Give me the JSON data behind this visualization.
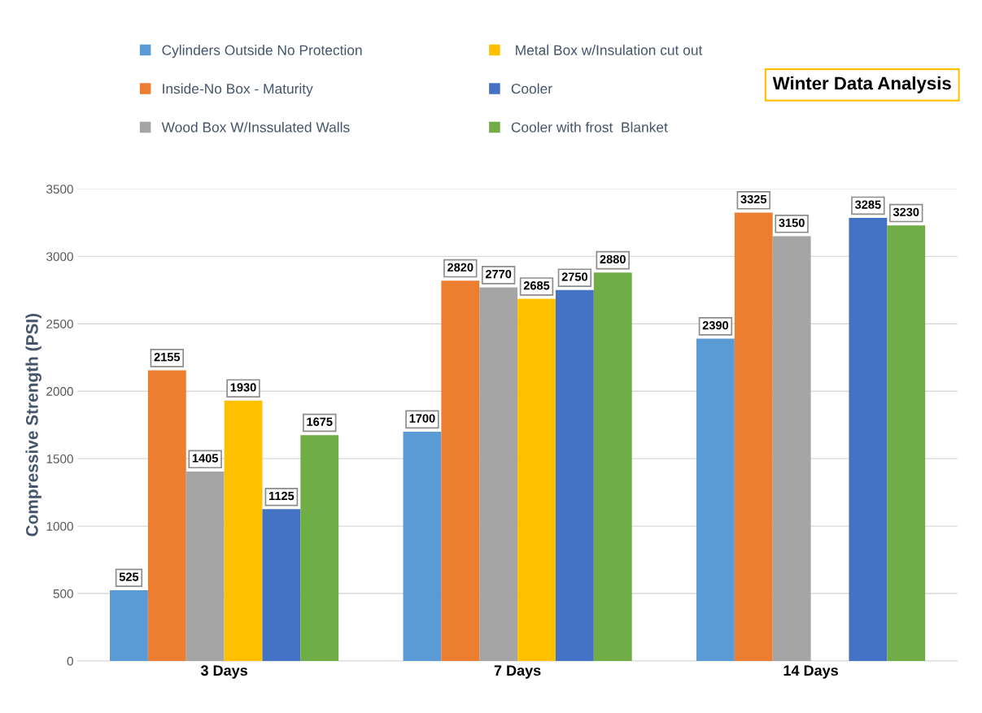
{
  "chart_data": {
    "type": "bar",
    "title": "Winter Data Analysis",
    "ylabel": "Compressive Strength (PSI)",
    "categories": [
      "3 Days",
      "7 Days",
      "14 Days"
    ],
    "series": [
      {
        "name": "Cylinders Outside No Protection",
        "color": "#5b9bd5",
        "values": [
          525,
          1700,
          2390
        ]
      },
      {
        "name": "Inside-No Box - Maturity",
        "color": "#ed7d31",
        "values": [
          2155,
          2820,
          3325
        ]
      },
      {
        "name": "Wood Box W/Inssulated Walls",
        "color": "#a5a5a5",
        "values": [
          1405,
          2770,
          3150
        ]
      },
      {
        "name": " Metal Box w/Insulation cut out",
        "color": "#ffc000",
        "values": [
          1930,
          2685,
          null
        ]
      },
      {
        "name": "Cooler",
        "color": "#4472c4",
        "values": [
          1125,
          2750,
          3285
        ]
      },
      {
        "name": "Cooler with frost  Blanket",
        "color": "#70ad47",
        "values": [
          1675,
          2880,
          3230
        ]
      }
    ],
    "ylim": [
      0,
      3500
    ],
    "yticks": [
      0,
      500,
      1000,
      1500,
      2000,
      2500,
      3000,
      3500
    ],
    "grid": "y",
    "legend": "top",
    "data_labels": true
  }
}
